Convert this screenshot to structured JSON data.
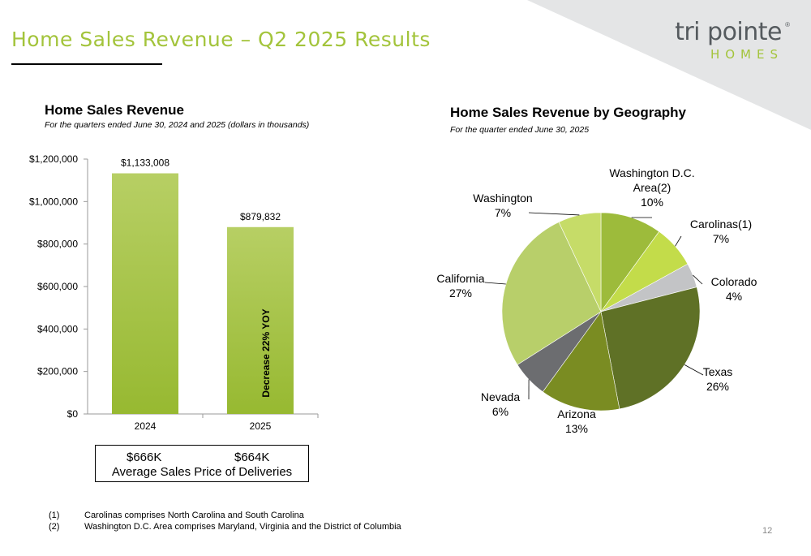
{
  "header": {
    "title": "Home Sales Revenue – Q2 2025 Results",
    "logo_main": "tri pointe",
    "logo_sub": "HOMES",
    "logo_reg": "®"
  },
  "colors": {
    "title_green": "#a3c43b",
    "bar_green": "#a7c33c",
    "corner_gray": "#e4e5e6"
  },
  "bar_section": {
    "title": "Home Sales Revenue",
    "subtitle": "For the quarters ended June 30, 2024 and 2025 (dollars in thousands)",
    "annotation": "Decrease 22% YOY"
  },
  "pie_section": {
    "title": "Home Sales Revenue by Geography",
    "subtitle": "For the quarter ended June 30, 2025"
  },
  "asp": {
    "value_2024": "$666K",
    "value_2025": "$664K",
    "label": "Average Sales Price of Deliveries"
  },
  "footnotes": [
    {
      "num": "(1)",
      "text": "Carolinas comprises North Carolina and South Carolina"
    },
    {
      "num": "(2)",
      "text": "Washington D.C. Area comprises Maryland, Virginia and the District of Columbia"
    }
  ],
  "page_number": "12",
  "chart_data": [
    {
      "type": "bar",
      "title": "Home Sales Revenue",
      "categories": [
        "2024",
        "2025"
      ],
      "values": [
        1133008,
        879832
      ],
      "value_labels": [
        "$1,133,008",
        "$879,832"
      ],
      "ylim": [
        0,
        1200000
      ],
      "y_ticks": [
        0,
        200000,
        400000,
        600000,
        800000,
        1000000,
        1200000
      ],
      "y_tick_labels": [
        "$0",
        "$200,000",
        "$400,000",
        "$600,000",
        "$800,000",
        "$1,000,000",
        "$1,200,000"
      ],
      "grid": false
    },
    {
      "type": "pie",
      "title": "Home Sales Revenue by Geography",
      "slices": [
        {
          "label": [
            "Washington D.C.",
            "Area(2)"
          ],
          "pct_label": "10%",
          "value": 10,
          "color": "#9dbb3b"
        },
        {
          "label": [
            "Carolinas(1)"
          ],
          "pct_label": "7%",
          "value": 7,
          "color": "#c3dc4a"
        },
        {
          "label": [
            "Colorado"
          ],
          "pct_label": "4%",
          "value": 4,
          "color": "#c3c4c6"
        },
        {
          "label": [
            "Texas"
          ],
          "pct_label": "26%",
          "value": 26,
          "color": "#5f7126"
        },
        {
          "label": [
            "Arizona"
          ],
          "pct_label": "13%",
          "value": 13,
          "color": "#7a8c22"
        },
        {
          "label": [
            "Nevada"
          ],
          "pct_label": "6%",
          "value": 6,
          "color": "#6c6d70"
        },
        {
          "label": [
            "California"
          ],
          "pct_label": "27%",
          "value": 27,
          "color": "#b8cf6a"
        },
        {
          "label": [
            "Washington"
          ],
          "pct_label": "7%",
          "value": 7,
          "color": "#c6dc68"
        }
      ]
    }
  ]
}
